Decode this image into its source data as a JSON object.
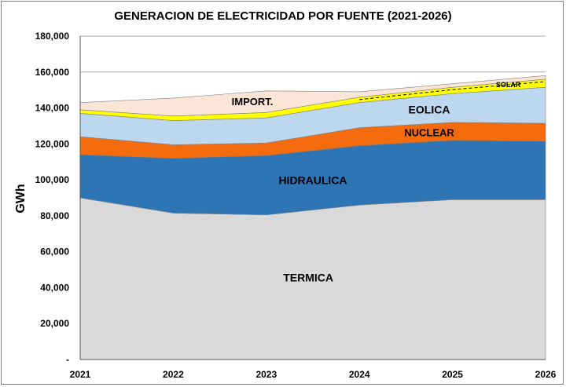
{
  "chart_data": {
    "type": "area",
    "stacked": true,
    "title": "GENERACION DE ELECTRICIDAD POR FUENTE (2021-2026)",
    "xlabel": "",
    "ylabel": "GWh",
    "ylim": [
      0,
      180000
    ],
    "yticks": [
      0,
      20000,
      40000,
      60000,
      80000,
      100000,
      120000,
      140000,
      160000,
      180000
    ],
    "ytick_labels": [
      "-",
      "20,000",
      "40,000",
      "60,000",
      "80,000",
      "100,000",
      "120,000",
      "140,000",
      "160,000",
      "180,000"
    ],
    "categories": [
      "2021",
      "2022",
      "2023",
      "2024",
      "2025",
      "2026"
    ],
    "grid": true,
    "legend": "none (labels inside areas)",
    "series": [
      {
        "name": "TERMICA",
        "color": "#d9d9d9",
        "values": [
          90000,
          81500,
          80500,
          86000,
          89000,
          89000
        ]
      },
      {
        "name": "HIDRAULICA",
        "color": "#2e75b6",
        "values": [
          24000,
          30500,
          33000,
          33000,
          33000,
          32500
        ]
      },
      {
        "name": "NUCLEAR",
        "color": "#f36b0c",
        "values": [
          10000,
          7500,
          7000,
          10000,
          10000,
          10000
        ]
      },
      {
        "name": "EOLICA",
        "color": "#bdd7ee",
        "values": [
          13000,
          13500,
          14000,
          14000,
          16000,
          20000
        ]
      },
      {
        "name": "SOLAR",
        "color": "#ffff00",
        "values": [
          2000,
          2500,
          3000,
          3000,
          3500,
          4500
        ]
      },
      {
        "name": "IMPORT.",
        "color": "#fbe5d6",
        "values": [
          4000,
          10000,
          12000,
          3000,
          2000,
          2000
        ]
      }
    ]
  }
}
